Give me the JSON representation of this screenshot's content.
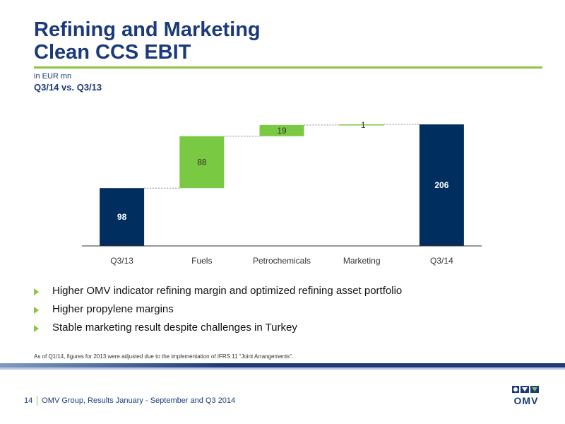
{
  "header": {
    "title_line1": "Refining and Marketing",
    "title_line2": "Clean CCS EBIT",
    "unit": "in EUR mn",
    "subtitle": "Q3/14 vs. Q3/13"
  },
  "colors": {
    "title": "#1a3a7a",
    "accent_green": "#8cc63f",
    "total_bar": "#002e5e",
    "delta_bar": "#7ac943"
  },
  "chart_data": {
    "type": "bar",
    "subtype": "waterfall",
    "categories": [
      "Q3/13",
      "Fuels",
      "Petrochemicals",
      "Marketing",
      "Q3/14"
    ],
    "values": [
      98,
      88,
      19,
      1,
      206
    ],
    "kinds": [
      "total",
      "delta",
      "delta",
      "delta",
      "total"
    ],
    "value_labels": [
      "98",
      "88",
      "19",
      "1",
      "206"
    ],
    "ylim": [
      0,
      230
    ],
    "grid": false,
    "legend": "none"
  },
  "bullets": [
    "Higher OMV indicator refining margin and optimized refining asset portfolio",
    "Higher propylene margins",
    "Stable marketing result despite challenges in Turkey"
  ],
  "footnote": "As of Q1/14, figures for 2013 were adjusted due to the implementation of IFRS 11 “Joint Arrangements”.",
  "footer": {
    "page_number": "14",
    "text": "OMV Group, Results January - September and Q3 2014",
    "logo_text": "OMV",
    "logo_icon": "omv-logo-icon"
  }
}
